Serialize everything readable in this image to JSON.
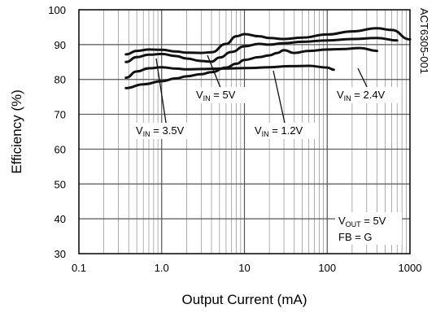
{
  "chart_data": {
    "type": "line",
    "title": "",
    "xlabel": "Output Current (mA)",
    "ylabel": "Efficiency (%)",
    "x_scale": "log",
    "xlim": [
      0.1,
      1000
    ],
    "ylim": [
      30,
      100
    ],
    "x_ticks": [
      "0.1",
      "1.0",
      "10",
      "100",
      "1000"
    ],
    "y_ticks": [
      "30",
      "40",
      "50",
      "60",
      "70",
      "80",
      "90",
      "100"
    ],
    "grid": true,
    "colors": {
      "line": "#111111",
      "grid": "#8c8c8c",
      "frame": "#000000"
    },
    "side_label": "ACT6305-001",
    "conditions": [
      "V_OUT = 5V",
      "FB = G"
    ],
    "series": [
      {
        "name": "VIN = 1.2V",
        "label_main": "V",
        "label_sub": "IN",
        "label_rest": " = 1.2V",
        "x": [
          0.37,
          0.5,
          0.7,
          1.0,
          1.5,
          2.0,
          3.0,
          5.0,
          8.0,
          12,
          20,
          35,
          60,
          100,
          120
        ],
        "y": [
          80.5,
          82.3,
          83.2,
          83.5,
          83.1,
          82.9,
          83.0,
          83.1,
          83.2,
          83.3,
          83.5,
          83.8,
          83.9,
          83.4,
          82.8
        ]
      },
      {
        "name": "VIN = 2.4V",
        "label_main": "V",
        "label_sub": "IN",
        "label_rest": " = 2.4V",
        "x": [
          0.37,
          0.6,
          1.0,
          1.5,
          2.0,
          3.0,
          4.0,
          6.0,
          8.0,
          10,
          15,
          20,
          25,
          30,
          40,
          60,
          100,
          150,
          250,
          400
        ],
        "y": [
          77.5,
          78.6,
          79.5,
          80.3,
          80.9,
          81.5,
          82.1,
          83.4,
          84.5,
          85.6,
          86.4,
          86.9,
          87.6,
          88.4,
          87.6,
          88.2,
          88.6,
          88.7,
          89.0,
          88.2
        ]
      },
      {
        "name": "VIN = 3.5V",
        "label_main": "V",
        "label_sub": "IN",
        "label_rest": " = 3.5V",
        "x": [
          0.37,
          0.5,
          0.7,
          1.0,
          1.5,
          2.0,
          3.0,
          4.0,
          5.0,
          7.0,
          10,
          15,
          20,
          30,
          50,
          100,
          200,
          400,
          700
        ],
        "y": [
          85.0,
          86.4,
          87.1,
          87.3,
          86.7,
          86.0,
          85.3,
          85.1,
          86.3,
          87.9,
          89.5,
          90.2,
          90.0,
          90.4,
          90.8,
          91.2,
          91.6,
          91.9,
          91.2
        ]
      },
      {
        "name": "VIN = 5V",
        "label_main": "V",
        "label_sub": "IN",
        "label_rest": " = 5V",
        "x": [
          0.37,
          0.5,
          0.7,
          1.0,
          1.5,
          2.0,
          3.0,
          4.0,
          6.0,
          8.0,
          10,
          15,
          20,
          30,
          50,
          100,
          200,
          400,
          600,
          1000
        ],
        "y": [
          87.2,
          88.2,
          88.6,
          88.5,
          88.0,
          87.7,
          87.6,
          87.8,
          90.2,
          92.4,
          93.0,
          92.4,
          91.9,
          91.6,
          92.0,
          92.9,
          93.8,
          94.7,
          94.2,
          91.5
        ]
      }
    ]
  }
}
